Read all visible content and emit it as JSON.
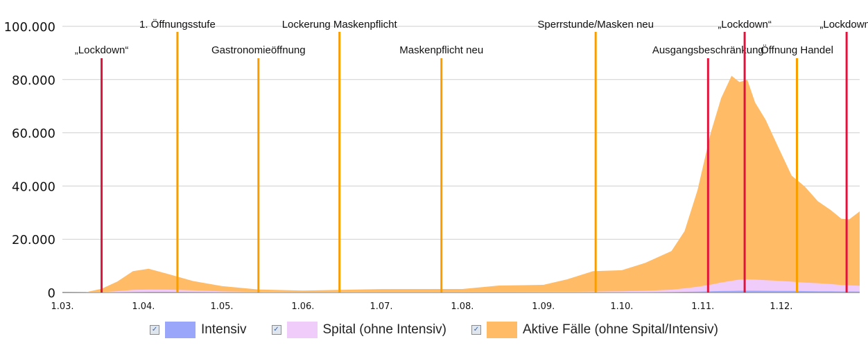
{
  "chart_data": {
    "type": "area",
    "stacked": true,
    "ylim": [
      0,
      100000
    ],
    "y_ticks": [
      "0",
      "20.000",
      "40.000",
      "60.000",
      "80.000",
      "100.000"
    ],
    "y_tick_values": [
      0,
      20000,
      40000,
      60000,
      80000,
      100000
    ],
    "x_start": "2020-03-01",
    "x_end": "2020-12-31",
    "x_ticks": [
      "1.03.",
      "1.04.",
      "1.05.",
      "1.06.",
      "1.07.",
      "1.08.",
      "1.09.",
      "1.10.",
      "1.11.",
      "1.12."
    ],
    "x_tick_dates": [
      "2020-03-01",
      "2020-04-01",
      "2020-05-01",
      "2020-06-01",
      "2020-07-01",
      "2020-08-01",
      "2020-09-01",
      "2020-10-01",
      "2020-11-01",
      "2020-12-01"
    ],
    "grid": true,
    "legend_position": "bottom",
    "x": [
      "2020-03-01",
      "2020-03-10",
      "2020-03-16",
      "2020-03-22",
      "2020-03-28",
      "2020-04-03",
      "2020-04-10",
      "2020-04-20",
      "2020-05-01",
      "2020-05-15",
      "2020-06-01",
      "2020-07-01",
      "2020-08-01",
      "2020-08-15",
      "2020-09-01",
      "2020-09-10",
      "2020-09-20",
      "2020-10-01",
      "2020-10-10",
      "2020-10-20",
      "2020-10-25",
      "2020-10-30",
      "2020-11-04",
      "2020-11-08",
      "2020-11-12",
      "2020-11-15",
      "2020-11-18",
      "2020-11-21",
      "2020-11-25",
      "2020-11-30",
      "2020-12-05",
      "2020-12-10",
      "2020-12-15",
      "2020-12-20",
      "2020-12-24",
      "2020-12-27",
      "2020-12-31"
    ],
    "series": [
      {
        "name": "Intensiv",
        "color": "#9aa6fa",
        "values": [
          0,
          0,
          20,
          100,
          200,
          250,
          260,
          200,
          110,
          60,
          30,
          10,
          10,
          15,
          25,
          30,
          40,
          60,
          80,
          150,
          250,
          350,
          450,
          550,
          600,
          650,
          650,
          650,
          630,
          600,
          560,
          520,
          480,
          440,
          400,
          380,
          360
        ]
      },
      {
        "name": "Spital (ohne Intensiv)",
        "color": "#f0ccfa",
        "values": [
          0,
          0,
          80,
          400,
          800,
          850,
          800,
          600,
          300,
          150,
          80,
          60,
          80,
          100,
          150,
          200,
          280,
          400,
          550,
          900,
          1300,
          1800,
          2500,
          3200,
          3800,
          4200,
          4300,
          4200,
          4000,
          3800,
          3500,
          3200,
          3000,
          2700,
          2400,
          2300,
          2200
        ]
      },
      {
        "name": "Aktive Fälle (ohne Spital/Intensiv)",
        "color": "#ffbb66",
        "values": [
          0,
          100,
          1300,
          3600,
          7000,
          7800,
          6000,
          3500,
          2000,
          900,
          600,
          1200,
          1200,
          2500,
          2700,
          4700,
          7700,
          7900,
          10500,
          14500,
          21500,
          36400,
          57000,
          69300,
          77000,
          74200,
          75000,
          66500,
          60300,
          49900,
          39800,
          36100,
          30800,
          27800,
          24900,
          24800,
          27900
        ]
      }
    ],
    "events": [
      {
        "date": "2020-03-16",
        "label": "„Lockdown“",
        "color": "#e0133c",
        "row": 1
      },
      {
        "date": "2020-04-14",
        "label": "1. Öffnungsstufe",
        "color": "#fa9e00",
        "row": 0
      },
      {
        "date": "2020-05-15",
        "label": "Gastronomieöffnung",
        "color": "#fa9e00",
        "row": 1
      },
      {
        "date": "2020-06-15",
        "label": "Lockerung Maskenpflicht",
        "color": "#fa9e00",
        "row": 0
      },
      {
        "date": "2020-07-24",
        "label": "Maskenpflicht neu",
        "color": "#fa9e00",
        "row": 1
      },
      {
        "date": "2020-09-21",
        "label": "Sperrstunde/Masken neu",
        "color": "#fa9e00",
        "row": 0
      },
      {
        "date": "2020-11-03",
        "label": "Ausgangsbeschränkung",
        "color": "#e0133c",
        "row": 1
      },
      {
        "date": "2020-11-17",
        "label": "„Lockdown“",
        "color": "#e0133c",
        "row": 0
      },
      {
        "date": "2020-12-07",
        "label": "Öffnung Handel",
        "color": "#fa9e00",
        "row": 1
      },
      {
        "date": "2020-12-26",
        "label": "„Lockdown“",
        "color": "#e0133c",
        "row": 0
      }
    ]
  },
  "legend": {
    "check_mark": "✓",
    "items": [
      {
        "label": "Intensiv",
        "color": "#9aa6fa"
      },
      {
        "label": "Spital (ohne Intensiv)",
        "color": "#f0ccfa"
      },
      {
        "label": "Aktive Fälle (ohne Spital/Intensiv)",
        "color": "#ffbb66"
      }
    ]
  }
}
